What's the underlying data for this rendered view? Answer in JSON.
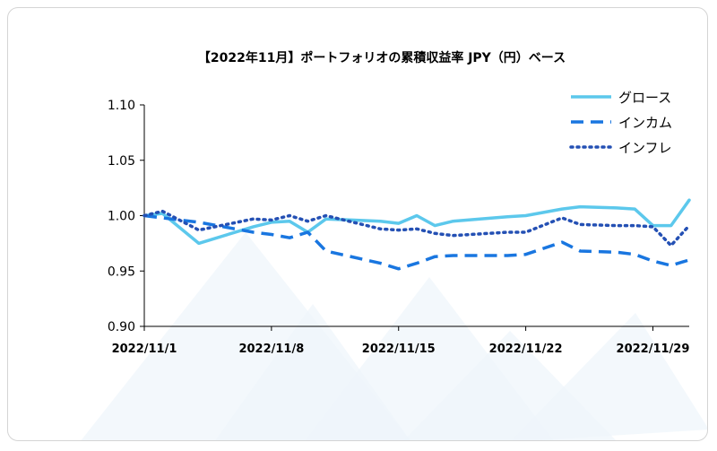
{
  "chart_data": {
    "type": "line",
    "title": "【2022年11月】ポートフォリオの累積収益率 JPY（円）ベース",
    "xlabel": "",
    "ylabel": "",
    "ylim": [
      0.9,
      1.1
    ],
    "yticks": [
      "0.90",
      "0.95",
      "1.00",
      "1.05",
      "1.10"
    ],
    "xticks": [
      {
        "label": "2022/11/1",
        "date": "2022-11-01"
      },
      {
        "label": "2022/11/8",
        "date": "2022-11-08"
      },
      {
        "label": "2022/11/15",
        "date": "2022-11-15"
      },
      {
        "label": "2022/11/22",
        "date": "2022-11-22"
      },
      {
        "label": "2022/11/29",
        "date": "2022-11-29"
      }
    ],
    "x": [
      "2022-11-01",
      "2022-11-02",
      "2022-11-04",
      "2022-11-07",
      "2022-11-08",
      "2022-11-09",
      "2022-11-10",
      "2022-11-11",
      "2022-11-14",
      "2022-11-15",
      "2022-11-16",
      "2022-11-17",
      "2022-11-18",
      "2022-11-21",
      "2022-11-22",
      "2022-11-24",
      "2022-11-25",
      "2022-11-27",
      "2022-11-28",
      "2022-11-29",
      "2022-11-30",
      "2022-12-01"
    ],
    "grid": false,
    "legend": "top-right",
    "series": [
      {
        "name": "グロース",
        "color": "#5cc8ec",
        "style": "solid",
        "values": [
          1.0,
          1.002,
          0.975,
          0.99,
          0.994,
          0.995,
          0.985,
          0.997,
          0.995,
          0.993,
          1.0,
          0.991,
          0.995,
          0.999,
          1.0,
          1.006,
          1.008,
          1.007,
          1.006,
          0.991,
          0.991,
          1.014
        ]
      },
      {
        "name": "インカム",
        "color": "#1976e0",
        "style": "dashed",
        "values": [
          1.0,
          0.998,
          0.994,
          0.985,
          0.983,
          0.98,
          0.985,
          0.968,
          0.957,
          0.952,
          0.957,
          0.963,
          0.964,
          0.964,
          0.965,
          0.976,
          0.968,
          0.967,
          0.965,
          0.959,
          0.955,
          0.96
        ]
      },
      {
        "name": "インフレ",
        "color": "#2450b4",
        "style": "dotted",
        "values": [
          1.0,
          1.004,
          0.987,
          0.997,
          0.996,
          1.0,
          0.995,
          1.0,
          0.988,
          0.987,
          0.988,
          0.984,
          0.982,
          0.985,
          0.985,
          0.998,
          0.992,
          0.991,
          0.991,
          0.99,
          0.973,
          0.991
        ]
      }
    ]
  }
}
